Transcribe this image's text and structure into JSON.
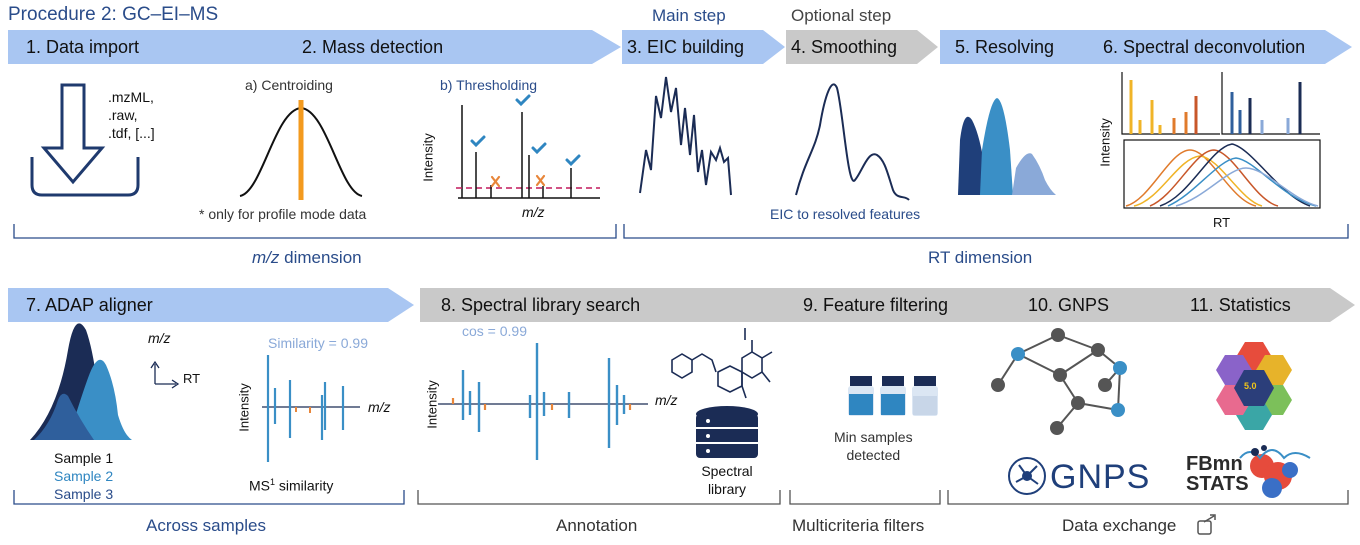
{
  "title": "Procedure 2: GC–EI–MS",
  "labels": {
    "main_step": "Main step",
    "optional_step": "Optional step"
  },
  "colors": {
    "step_blue": "#a9c6f2",
    "step_gray": "#c9c9c9",
    "accent_dark": "#1f3f7a",
    "accent_mid": "#3a8fc6",
    "accent_light": "#8aa9d8",
    "orange": "#e6962a",
    "threshold_line": "#c2185b"
  },
  "top_steps": [
    "1. Data import",
    "2. Mass detection",
    "3. EIC building",
    "4. Smoothing",
    "5. Resolving",
    "6. Spectral deconvolution"
  ],
  "bottom_steps": [
    "7. ADAP aligner",
    "8. Spectral library search",
    "9. Feature filtering",
    "10. GNPS",
    "11. Statistics"
  ],
  "import_formats": [
    ".mzML,",
    ".raw,",
    ".tdf, [...]"
  ],
  "mass_detection": {
    "centroiding": "a) Centroiding",
    "thresholding": "b) Thresholding",
    "profile_note": "* only for profile mode data",
    "ylabel": "Intensity",
    "xlabel": "m/z"
  },
  "eic_note": "EIC to resolved features",
  "deconvolution": {
    "ylabel": "Intensity",
    "xlabel": "RT"
  },
  "dimensions": {
    "mz_em": "m/z",
    "mz_rest": " dimension",
    "rt": "RT dimension"
  },
  "aligner": {
    "axis_mz": "m/z",
    "axis_rt": "RT",
    "samples": [
      "Sample 1",
      "Sample 2",
      "Sample 3"
    ],
    "similarity": "Similarity = 0.99",
    "ylabel": "Intensity",
    "xlabel": "m/z",
    "ms_sim_pre": "MS",
    "ms_sim_sup": "1",
    "ms_sim_post": " similarity"
  },
  "library": {
    "cos": "cos = 0.99",
    "ylabel": "Intensity",
    "xlabel": "m/z",
    "db_label_1": "Spectral",
    "db_label_2": "library"
  },
  "filtering": {
    "line1": "Min samples",
    "line2": "detected"
  },
  "gnps_logo": "GNPS",
  "metabo_logo": {
    "badge": "5.0"
  },
  "fbmn_logo": {
    "line1": "FBmn",
    "line2": "STATS"
  },
  "groups": {
    "across": "Across samples",
    "annotation": "Annotation",
    "multicriteria": "Multicriteria filters",
    "exchange": "Data exchange"
  }
}
